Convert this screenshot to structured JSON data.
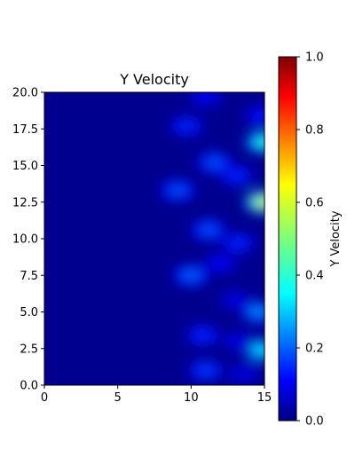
{
  "chart_data": {
    "type": "heatmap",
    "title": "Y Velocity",
    "xlabel": "",
    "ylabel": "",
    "xlim": [
      0,
      15
    ],
    "ylim": [
      0,
      20
    ],
    "xticks": [
      "0",
      "5",
      "10",
      "15"
    ],
    "yticks": [
      "0.0",
      "2.5",
      "5.0",
      "7.5",
      "10.0",
      "12.5",
      "15.0",
      "17.5",
      "20.0"
    ],
    "colorbar": {
      "label": "Y Velocity",
      "range": [
        0,
        1
      ],
      "ticks": [
        "0.0",
        "0.2",
        "0.4",
        "0.6",
        "0.8",
        "1.0"
      ],
      "colormap": "jet"
    },
    "background_value": 0.0,
    "blobs": [
      {
        "x": 11.0,
        "y": 19.7,
        "value": 0.12
      },
      {
        "x": 9.7,
        "y": 17.7,
        "value": 0.16
      },
      {
        "x": 14.8,
        "y": 18.4,
        "value": 0.14
      },
      {
        "x": 14.9,
        "y": 16.6,
        "value": 0.4
      },
      {
        "x": 11.6,
        "y": 15.2,
        "value": 0.2
      },
      {
        "x": 13.1,
        "y": 14.3,
        "value": 0.16
      },
      {
        "x": 9.1,
        "y": 13.3,
        "value": 0.2
      },
      {
        "x": 14.9,
        "y": 12.5,
        "value": 0.55
      },
      {
        "x": 11.2,
        "y": 10.6,
        "value": 0.2
      },
      {
        "x": 13.2,
        "y": 9.7,
        "value": 0.16
      },
      {
        "x": 12.0,
        "y": 8.3,
        "value": 0.12
      },
      {
        "x": 10.0,
        "y": 7.5,
        "value": 0.22
      },
      {
        "x": 14.6,
        "y": 5.0,
        "value": 0.26
      },
      {
        "x": 13.0,
        "y": 5.8,
        "value": 0.1
      },
      {
        "x": 10.8,
        "y": 3.4,
        "value": 0.16
      },
      {
        "x": 14.8,
        "y": 2.4,
        "value": 0.35
      },
      {
        "x": 13.2,
        "y": 3.0,
        "value": 0.1
      },
      {
        "x": 11.0,
        "y": 1.0,
        "value": 0.18
      },
      {
        "x": 13.6,
        "y": 0.8,
        "value": 0.1
      }
    ]
  }
}
